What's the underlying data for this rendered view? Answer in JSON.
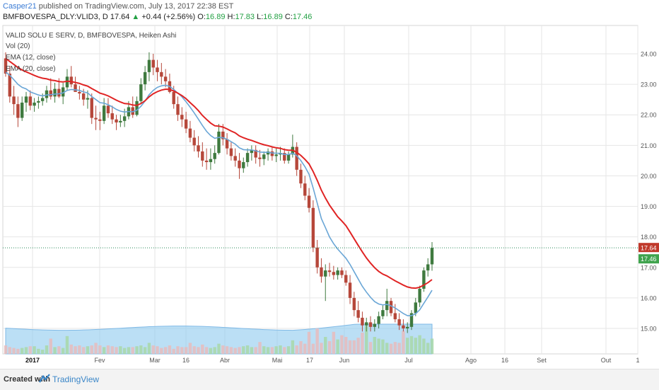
{
  "header": {
    "author": "Casper21",
    "published": "published on TradingView.com, July 13, 2017 22:38 EST",
    "symbol_line": "BMFBOVESPA_DLY:VLID3, D",
    "last": "17.64",
    "arrow": "▲",
    "change": "+0.44 (+2.56%)",
    "o_label": "O:",
    "o_value": "16.89",
    "h_label": "H:",
    "h_value": "17.83",
    "l_label": "L:",
    "l_value": "16.89",
    "c_label": "C:",
    "c_value": "17.46"
  },
  "legend": {
    "title": "VALID SOLU E SERV, D, BMFBOVESPA, Heiken Ashi",
    "vol": "Vol (20)",
    "ema1": "EMA (12, close)",
    "ema2": "EMA (20, close)"
  },
  "footer": {
    "created_with": "Created with",
    "brand": "TradingView"
  },
  "colors": {
    "up": "#3f7a3f",
    "down": "#b6473a",
    "ema_fast": "#6aa6d6",
    "ema_slow": "#e02424",
    "volume_up": "#a8d8a8",
    "volume_down": "#e8bcbc",
    "volume_ma": "#8ec9ee",
    "last_price_bg": "#c0392b",
    "close_bg": "#3fa34d",
    "grid": "#e6e6e6"
  },
  "chart_data": {
    "type": "candlestick",
    "timeframe": "D",
    "y_ticks": [
      "24.00",
      "23.00",
      "22.00",
      "21.00",
      "20.00",
      "19.00",
      "18.00",
      "17.00",
      "16.00",
      "15.00"
    ],
    "ylim": [
      14.5,
      24.6
    ],
    "x_ticks": [
      "2017",
      "Fev",
      "Mar",
      "16",
      "Abr",
      "Mai",
      "17",
      "Jun",
      "Jul",
      "Ago",
      "16",
      "Set",
      "Out",
      "1"
    ],
    "last_price_label": "17.64",
    "close_label": "17.46",
    "candles": [
      [
        23.85,
        24.05,
        23.25,
        23.35
      ],
      [
        23.35,
        23.6,
        22.4,
        22.6
      ],
      [
        22.6,
        22.95,
        22.0,
        22.35
      ],
      [
        22.35,
        22.6,
        21.6,
        21.9
      ],
      [
        21.9,
        22.6,
        21.8,
        22.4
      ],
      [
        22.4,
        22.75,
        22.1,
        22.6
      ],
      [
        22.6,
        22.8,
        22.15,
        22.3
      ],
      [
        22.3,
        22.55,
        22.1,
        22.4
      ],
      [
        22.4,
        22.6,
        22.2,
        22.45
      ],
      [
        22.45,
        22.7,
        22.3,
        22.55
      ],
      [
        22.55,
        22.95,
        22.4,
        22.8
      ],
      [
        22.8,
        23.2,
        22.5,
        22.6
      ],
      [
        22.6,
        23.05,
        22.4,
        22.85
      ],
      [
        22.85,
        23.2,
        22.55,
        22.6
      ],
      [
        22.6,
        23.05,
        22.35,
        22.9
      ],
      [
        22.9,
        23.5,
        22.8,
        23.25
      ],
      [
        23.25,
        23.6,
        22.9,
        23.0
      ],
      [
        23.0,
        23.25,
        22.8,
        22.75
      ],
      [
        22.75,
        22.95,
        22.5,
        22.7
      ],
      [
        22.7,
        22.85,
        22.3,
        22.5
      ],
      [
        22.5,
        22.8,
        22.2,
        22.55
      ],
      [
        22.55,
        22.7,
        21.7,
        21.9
      ],
      [
        21.9,
        22.3,
        21.5,
        21.85
      ],
      [
        21.85,
        22.1,
        21.5,
        21.8
      ],
      [
        21.8,
        22.55,
        21.7,
        22.3
      ],
      [
        22.3,
        22.55,
        21.9,
        22.05
      ],
      [
        22.05,
        22.3,
        21.7,
        21.85
      ],
      [
        21.85,
        22.0,
        21.5,
        21.75
      ],
      [
        21.75,
        22.0,
        21.6,
        21.8
      ],
      [
        21.8,
        22.2,
        21.6,
        21.95
      ],
      [
        21.95,
        22.45,
        21.85,
        22.25
      ],
      [
        22.25,
        22.6,
        21.9,
        22.0
      ],
      [
        22.0,
        22.6,
        21.95,
        22.45
      ],
      [
        22.45,
        23.2,
        22.35,
        23.0
      ],
      [
        23.0,
        23.6,
        22.8,
        23.4
      ],
      [
        23.4,
        24.05,
        23.1,
        23.8
      ],
      [
        23.8,
        24.0,
        23.3,
        23.55
      ],
      [
        23.55,
        23.8,
        23.1,
        23.4
      ],
      [
        23.4,
        23.7,
        23.0,
        23.25
      ],
      [
        23.25,
        23.5,
        22.9,
        23.1
      ],
      [
        23.1,
        23.35,
        22.7,
        22.75
      ],
      [
        22.75,
        22.95,
        22.2,
        22.35
      ],
      [
        22.35,
        22.6,
        21.8,
        22.0
      ],
      [
        22.0,
        22.25,
        21.6,
        21.85
      ],
      [
        21.85,
        22.1,
        21.4,
        21.55
      ],
      [
        21.55,
        21.8,
        21.1,
        21.25
      ],
      [
        21.25,
        21.5,
        20.8,
        21.0
      ],
      [
        21.0,
        21.3,
        20.6,
        20.8
      ],
      [
        20.8,
        21.1,
        20.3,
        20.5
      ],
      [
        20.5,
        20.9,
        20.2,
        20.45
      ],
      [
        20.45,
        20.9,
        20.2,
        20.55
      ],
      [
        20.55,
        21.0,
        20.4,
        20.75
      ],
      [
        20.75,
        21.7,
        20.7,
        21.45
      ],
      [
        21.45,
        21.7,
        21.0,
        21.2
      ],
      [
        21.2,
        21.4,
        20.7,
        20.9
      ],
      [
        20.9,
        21.1,
        20.5,
        20.65
      ],
      [
        20.65,
        20.9,
        20.3,
        20.5
      ],
      [
        20.5,
        20.75,
        19.9,
        20.25
      ],
      [
        20.25,
        20.6,
        20.1,
        20.45
      ],
      [
        20.45,
        20.9,
        20.3,
        20.75
      ],
      [
        20.75,
        21.0,
        20.5,
        20.85
      ],
      [
        20.85,
        21.0,
        20.4,
        20.6
      ],
      [
        20.6,
        20.85,
        20.3,
        20.55
      ],
      [
        20.55,
        20.8,
        20.35,
        20.7
      ],
      [
        20.7,
        20.9,
        20.5,
        20.8
      ],
      [
        20.8,
        20.95,
        20.5,
        20.65
      ],
      [
        20.65,
        20.9,
        20.45,
        20.7
      ],
      [
        20.7,
        20.95,
        20.5,
        20.75
      ],
      [
        20.75,
        20.9,
        20.4,
        20.5
      ],
      [
        20.5,
        20.8,
        20.4,
        20.7
      ],
      [
        20.7,
        21.35,
        20.6,
        20.95
      ],
      [
        20.95,
        21.1,
        20.0,
        20.2
      ],
      [
        20.2,
        20.4,
        19.6,
        19.75
      ],
      [
        19.75,
        20.0,
        19.2,
        19.35
      ],
      [
        19.35,
        19.6,
        18.8,
        18.95
      ],
      [
        18.95,
        19.2,
        17.5,
        17.65
      ],
      [
        17.65,
        17.9,
        16.8,
        17.0
      ],
      [
        17.0,
        17.3,
        16.5,
        16.7
      ],
      [
        16.7,
        17.1,
        15.9,
        16.9
      ],
      [
        16.9,
        17.15,
        16.7,
        16.85
      ],
      [
        16.85,
        17.05,
        16.6,
        16.75
      ],
      [
        16.75,
        17.0,
        16.6,
        16.9
      ],
      [
        16.9,
        17.0,
        16.65,
        16.75
      ],
      [
        16.75,
        16.9,
        16.4,
        16.5
      ],
      [
        16.5,
        16.75,
        15.8,
        16.0
      ],
      [
        16.0,
        16.2,
        15.4,
        15.6
      ],
      [
        15.6,
        15.9,
        15.2,
        15.35
      ],
      [
        15.35,
        15.55,
        14.9,
        15.1
      ],
      [
        15.1,
        15.35,
        14.9,
        15.2
      ],
      [
        15.2,
        15.4,
        14.9,
        15.05
      ],
      [
        15.05,
        15.3,
        14.9,
        15.15
      ],
      [
        15.15,
        15.55,
        15.0,
        15.4
      ],
      [
        15.4,
        15.75,
        15.3,
        15.6
      ],
      [
        15.6,
        16.3,
        15.4,
        15.9
      ],
      [
        15.9,
        16.0,
        15.4,
        15.5
      ],
      [
        15.5,
        15.8,
        15.2,
        15.3
      ],
      [
        15.3,
        15.5,
        14.95,
        15.1
      ],
      [
        15.1,
        15.3,
        14.9,
        15.0
      ],
      [
        15.0,
        15.2,
        14.85,
        15.05
      ],
      [
        15.05,
        15.6,
        14.95,
        15.5
      ],
      [
        15.5,
        16.0,
        15.4,
        15.85
      ],
      [
        15.85,
        16.4,
        15.7,
        16.3
      ],
      [
        16.3,
        17.0,
        16.2,
        16.9
      ],
      [
        16.9,
        17.3,
        16.7,
        17.1
      ],
      [
        17.1,
        17.83,
        16.89,
        17.64
      ]
    ],
    "ema_fast": [
      23.4,
      23.3,
      23.15,
      23.0,
      22.9,
      22.85,
      22.75,
      22.7,
      22.65,
      22.62,
      22.65,
      22.66,
      22.68,
      22.69,
      22.72,
      22.8,
      22.83,
      22.82,
      22.8,
      22.75,
      22.72,
      22.6,
      22.5,
      22.4,
      22.38,
      22.33,
      22.26,
      22.18,
      22.12,
      22.09,
      22.11,
      22.1,
      22.15,
      22.28,
      22.45,
      22.66,
      22.8,
      22.9,
      22.95,
      22.97,
      22.93,
      22.83,
      22.71,
      22.59,
      22.43,
      22.25,
      22.06,
      21.86,
      21.65,
      21.46,
      21.32,
      21.23,
      21.26,
      21.25,
      21.2,
      21.12,
      21.04,
      20.92,
      20.86,
      20.85,
      20.85,
      20.82,
      20.78,
      20.77,
      20.77,
      20.75,
      20.74,
      20.74,
      20.7,
      20.7,
      20.74,
      20.66,
      20.5,
      20.3,
      20.05,
      19.6,
      19.1,
      18.6,
      18.3,
      18.0,
      17.78,
      17.6,
      17.45,
      17.3,
      17.1,
      16.86,
      16.62,
      16.38,
      16.19,
      16.02,
      15.88,
      15.8,
      15.77,
      15.79,
      15.74,
      15.67,
      15.58,
      15.49,
      15.42,
      15.42,
      15.48,
      15.61,
      15.82,
      16.03,
      16.25
    ],
    "ema_slow": [
      23.85,
      23.75,
      23.65,
      23.55,
      23.47,
      23.41,
      23.35,
      23.29,
      23.24,
      23.2,
      23.18,
      23.14,
      23.12,
      23.09,
      23.08,
      23.1,
      23.09,
      23.06,
      23.03,
      22.98,
      22.94,
      22.86,
      22.79,
      22.71,
      22.67,
      22.62,
      22.55,
      22.48,
      22.42,
      22.37,
      22.36,
      22.32,
      22.31,
      22.37,
      22.46,
      22.59,
      22.69,
      22.76,
      22.81,
      22.84,
      22.83,
      22.78,
      22.71,
      22.63,
      22.53,
      22.4,
      22.28,
      22.14,
      21.98,
      21.85,
      21.73,
      21.64,
      21.63,
      21.6,
      21.54,
      21.47,
      21.41,
      21.31,
      21.25,
      21.2,
      21.16,
      21.11,
      21.06,
      21.02,
      20.99,
      20.95,
      20.92,
      20.9,
      20.86,
      20.84,
      20.84,
      20.77,
      20.67,
      20.54,
      20.39,
      20.14,
      19.85,
      19.53,
      19.27,
      19.04,
      18.85,
      18.66,
      18.52,
      18.37,
      18.16,
      17.94,
      17.72,
      17.51,
      17.31,
      17.14,
      16.99,
      16.87,
      16.78,
      16.72,
      16.64,
      16.56,
      16.49,
      16.42,
      16.36,
      16.33,
      16.32,
      16.35,
      16.42,
      16.5,
      16.6
    ],
    "volume": [
      1,
      0.8,
      0.7,
      0.6,
      0.7,
      0.8,
      0.9,
      0.9,
      0.6,
      0.5,
      1.0,
      1.8,
      0.8,
      0.9,
      0.7,
      2.1,
      1.1,
      0.9,
      1.0,
      0.8,
      0.9,
      1.0,
      1.3,
      1.0,
      0.8,
      1.0,
      0.9,
      0.8,
      0.9,
      0.7,
      0.8,
      0.8,
      0.9,
      1.0,
      0.8,
      1.3,
      1.0,
      0.9,
      0.7,
      0.8,
      1.0,
      0.6,
      0.9,
      0.8,
      0.8,
      1.3,
      0.9,
      0.8,
      1.1,
      0.8,
      0.7,
      0.8,
      1.2,
      1.0,
      0.9,
      0.8,
      0.7,
      0.8,
      0.9,
      1.0,
      0.8,
      0.8,
      1.4,
      0.9,
      0.8,
      0.8,
      0.9,
      1.0,
      0.8,
      0.9,
      1.6,
      1.0,
      1.5,
      1.2,
      2.6,
      1.2,
      3.0,
      1.3,
      2.0,
      1.5,
      2.6,
      1.7,
      2.2,
      2.0,
      1.6,
      1.6,
      1.9,
      2.5,
      3.3,
      1.4,
      2.0,
      1.8,
      1.7,
      1.3,
      1.2,
      1.4,
      1.3,
      2.7,
      1.9,
      2.1,
      1.9,
      2.2,
      1.8,
      1.3,
      1.8
    ],
    "volume_ma_level": 0.52
  }
}
